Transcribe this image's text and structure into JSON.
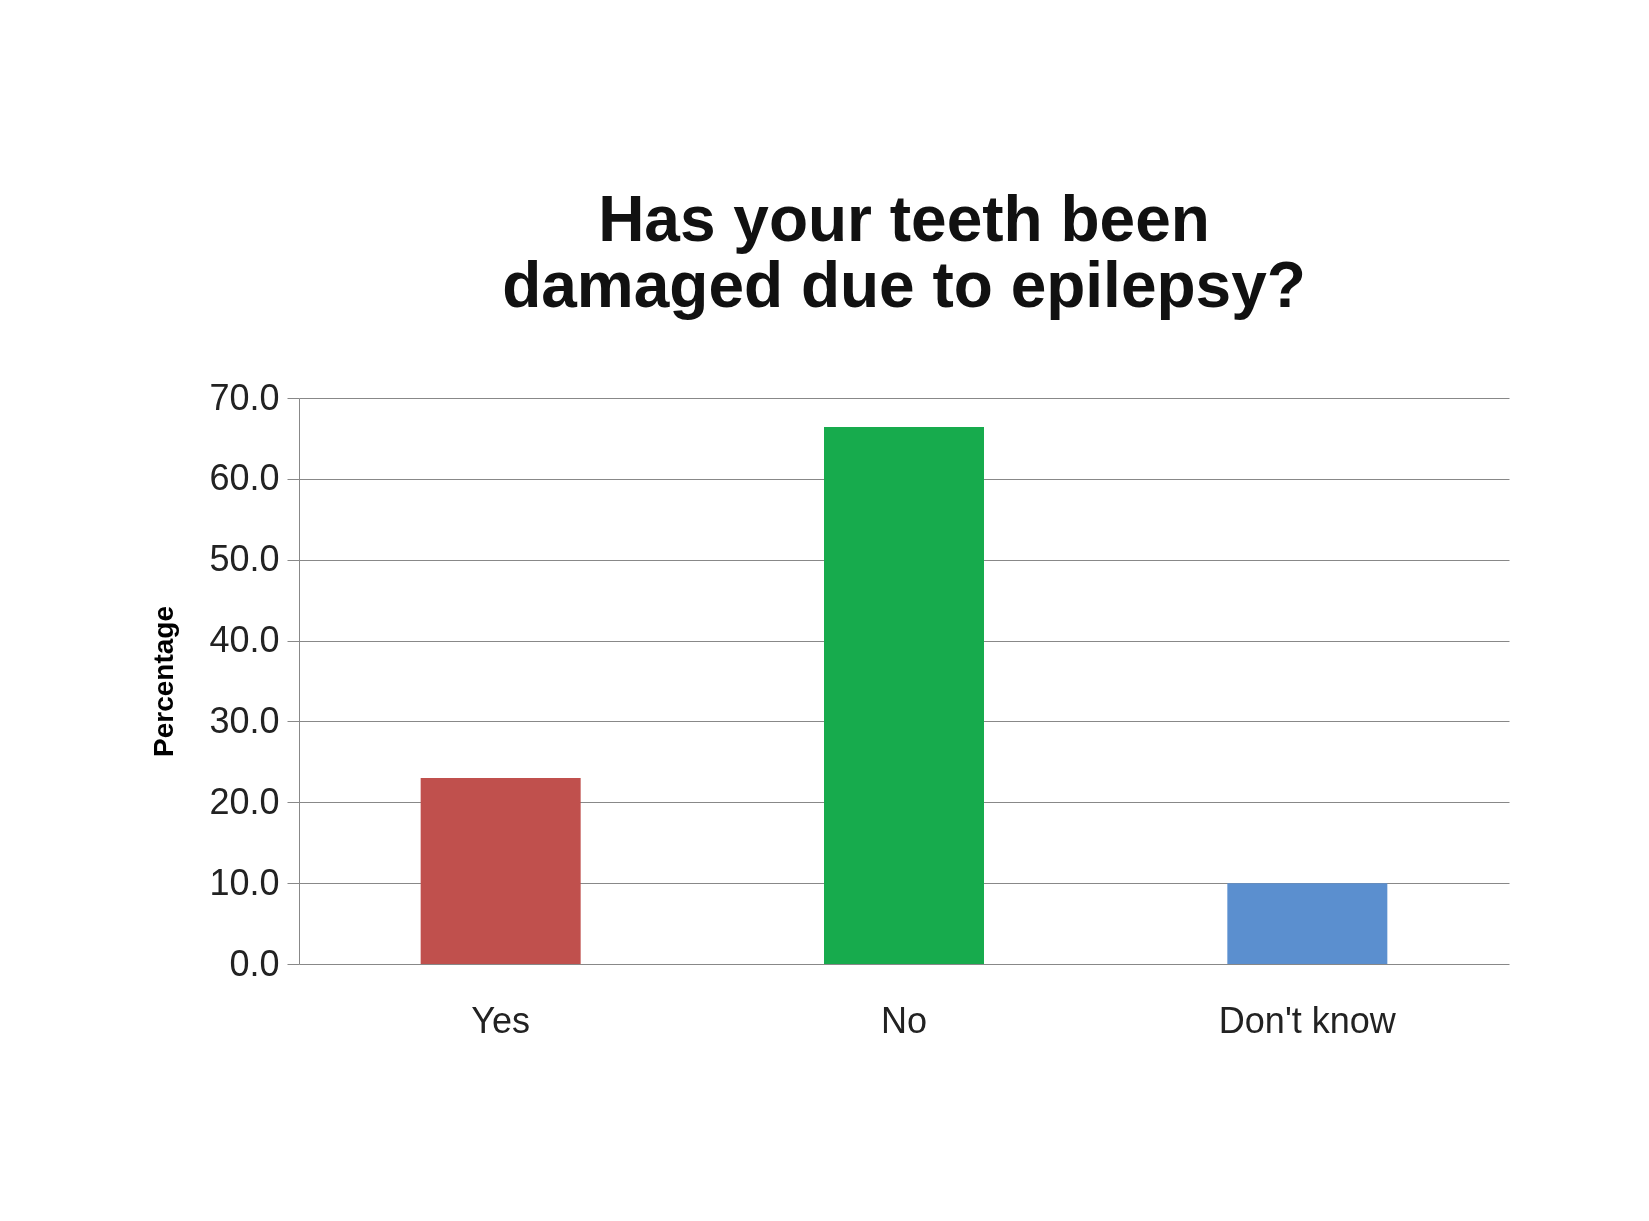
{
  "chart_data": {
    "type": "bar",
    "title": "Has your teeth been damaged due to epilepsy?",
    "ylabel": "Percentage",
    "categories": [
      "Yes",
      "No",
      "Don't know"
    ],
    "values": [
      23.0,
      66.4,
      10.0
    ],
    "colors": [
      "#c0504d",
      "#17ab4d",
      "#5b8fcf"
    ],
    "ylim": [
      0,
      70
    ],
    "yticks": [
      {
        "value": 0,
        "label": "0.0"
      },
      {
        "value": 10,
        "label": "10.0"
      },
      {
        "value": 20,
        "label": "20.0"
      },
      {
        "value": 30,
        "label": "30.0"
      },
      {
        "value": 40,
        "label": "40.0"
      },
      {
        "value": 50,
        "label": "50.0"
      },
      {
        "value": 60,
        "label": "60.0"
      },
      {
        "value": 70,
        "label": "70.0"
      }
    ],
    "grid": "y"
  }
}
